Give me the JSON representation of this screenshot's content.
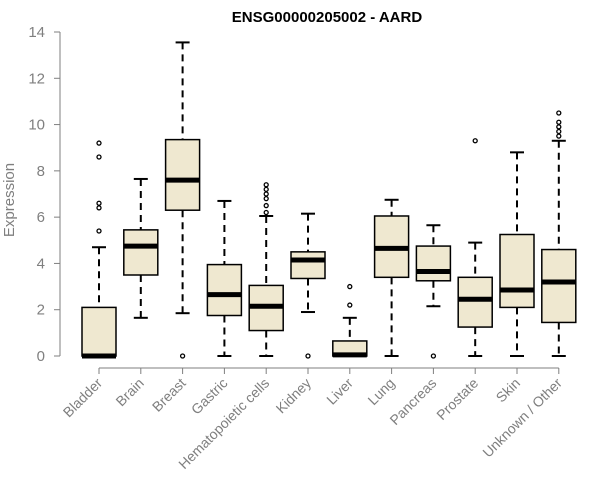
{
  "chart_data": {
    "type": "boxplot",
    "title": "ENSG00000205002 - AARD",
    "xlabel": "",
    "ylabel": "Expression",
    "ylim": [
      0,
      14
    ],
    "yticks": [
      0,
      2,
      4,
      6,
      8,
      10,
      12,
      14
    ],
    "grid": false,
    "box_color": "#efe8d0",
    "categories": [
      "Bladder",
      "Brain",
      "Breast",
      "Gastric",
      "Hematopoietic cells",
      "Kidney",
      "Liver",
      "Lung",
      "Pancreas",
      "Prostate",
      "Skin",
      "Unknown / Other"
    ],
    "boxes": [
      {
        "whisker_low": 0,
        "q1": 0,
        "median": 0,
        "q3": 2.1,
        "whisker_high": 4.7,
        "outliers": [
          5.4,
          6.4,
          6.6,
          8.6,
          9.2
        ]
      },
      {
        "whisker_low": 1.65,
        "q1": 3.5,
        "median": 4.75,
        "q3": 5.45,
        "whisker_high": 7.65,
        "outliers": []
      },
      {
        "whisker_low": 1.85,
        "q1": 6.3,
        "median": 7.6,
        "q3": 9.35,
        "whisker_high": 13.55,
        "outliers": [
          0
        ]
      },
      {
        "whisker_low": 0,
        "q1": 1.75,
        "median": 2.65,
        "q3": 3.95,
        "whisker_high": 6.7,
        "outliers": []
      },
      {
        "whisker_low": 0,
        "q1": 1.1,
        "median": 2.15,
        "q3": 3.05,
        "whisker_high": 6.05,
        "outliers": [
          6.2,
          6.5,
          6.8,
          7.0,
          7.2,
          7.4
        ]
      },
      {
        "whisker_low": 1.9,
        "q1": 3.35,
        "median": 4.15,
        "q3": 4.5,
        "whisker_high": 6.15,
        "outliers": [
          0
        ]
      },
      {
        "whisker_low": 0,
        "q1": 0,
        "median": 0.05,
        "q3": 0.65,
        "whisker_high": 1.65,
        "outliers": [
          2.2,
          3.0
        ]
      },
      {
        "whisker_low": 0,
        "q1": 3.4,
        "median": 4.65,
        "q3": 6.05,
        "whisker_high": 6.75,
        "outliers": []
      },
      {
        "whisker_low": 2.15,
        "q1": 3.25,
        "median": 3.65,
        "q3": 4.75,
        "whisker_high": 5.65,
        "outliers": [
          0
        ]
      },
      {
        "whisker_low": 0,
        "q1": 1.25,
        "median": 2.45,
        "q3": 3.4,
        "whisker_high": 4.9,
        "outliers": [
          9.3
        ]
      },
      {
        "whisker_low": 0,
        "q1": 2.1,
        "median": 2.85,
        "q3": 5.25,
        "whisker_high": 8.8,
        "outliers": []
      },
      {
        "whisker_low": 0,
        "q1": 1.45,
        "median": 3.2,
        "q3": 4.6,
        "whisker_high": 9.3,
        "outliers": [
          9.5,
          9.7,
          9.9,
          10.1,
          10.5
        ]
      }
    ]
  }
}
